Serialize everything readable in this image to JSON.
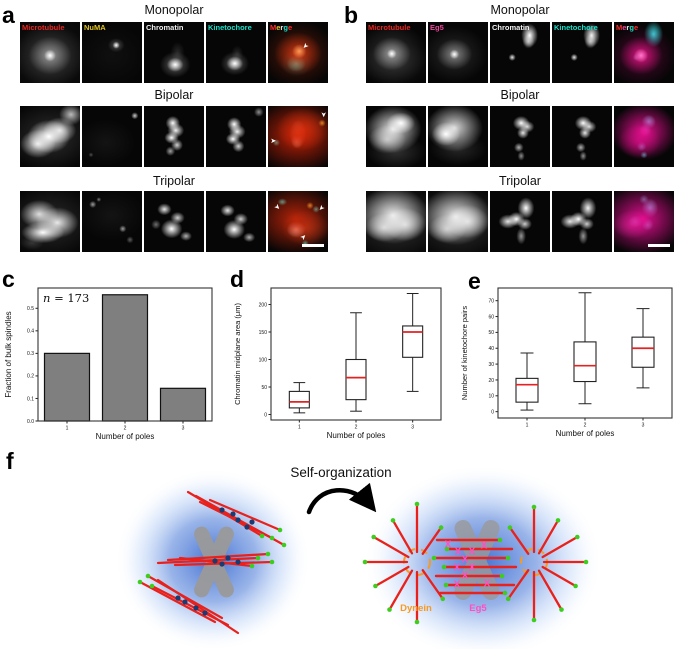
{
  "figure": {
    "panel_a": {
      "letter": "a",
      "row_titles": [
        "Monopolar",
        "Bipolar",
        "Tripolar"
      ],
      "channels": [
        {
          "label": "Microtubule",
          "color": "#e8241f"
        },
        {
          "label": "NuMA",
          "color": "#e3c51d"
        },
        {
          "label": "Chromatin",
          "color": "#f2f2f2"
        },
        {
          "label": "Kinetochore",
          "color": "#18e0c8"
        },
        {
          "label": "Merge",
          "color": "multi"
        }
      ],
      "merge_letters": [
        {
          "ch": "M",
          "color": "#ff2a2a"
        },
        {
          "ch": "e",
          "color": "#e3c51d"
        },
        {
          "ch": "r",
          "color": "#e8e8e8"
        },
        {
          "ch": "g",
          "color": "#18e0c8"
        },
        {
          "ch": "e",
          "color": "#ff2a2a"
        }
      ]
    },
    "panel_b": {
      "letter": "b",
      "row_titles": [
        "Monopolar",
        "Bipolar",
        "Tripolar"
      ],
      "channels": [
        {
          "label": "Microtubule",
          "color": "#e8241f"
        },
        {
          "label": "Eg5",
          "color": "#f0459c"
        },
        {
          "label": "Chromatin",
          "color": "#f2f2f2"
        },
        {
          "label": "Kinetochore",
          "color": "#18e0c8"
        },
        {
          "label": "Merge",
          "color": "multi"
        }
      ],
      "merge_letters": [
        {
          "ch": "M",
          "color": "#ff2a2a"
        },
        {
          "ch": "e",
          "color": "#f0459c"
        },
        {
          "ch": "r",
          "color": "#e8e8e8"
        },
        {
          "ch": "g",
          "color": "#18e0c8"
        },
        {
          "ch": "e",
          "color": "#ff2a2a"
        }
      ]
    },
    "panel_f": {
      "letter": "f",
      "arrow_label": "Self-organization",
      "legend": [
        {
          "label": "Dynein",
          "color": "#f59a23"
        },
        {
          "label": "Eg5",
          "color": "#ff4fc2"
        }
      ]
    }
  },
  "chart_data": [
    {
      "id": "c",
      "panel_letter": "c",
      "type": "bar",
      "title": "",
      "xlabel": "Number of poles",
      "ylabel": "Fraction of bulk spindles",
      "annotation": "n = 173",
      "categories": [
        "1",
        "2",
        "3"
      ],
      "values": [
        0.3,
        0.56,
        0.145
      ],
      "ylim": [
        0,
        0.59
      ],
      "yticks": [
        0.0,
        0.1,
        0.2,
        0.3,
        0.4,
        0.5
      ],
      "ytick_labels": [
        "0.0",
        "0.1",
        "0.2",
        "0.3",
        "0.4",
        "0.5"
      ],
      "bar_color": "#7f7f7f",
      "grid": false,
      "legend_position": "none"
    },
    {
      "id": "d",
      "panel_letter": "d",
      "type": "box",
      "title": "",
      "xlabel": "Number of poles",
      "ylabel": "Chromatin midplane area (μm)",
      "categories": [
        "1",
        "2",
        "3"
      ],
      "series": [
        {
          "category": "1",
          "whislo": 3,
          "q1": 12,
          "med": 23,
          "q3": 42,
          "whishi": 58
        },
        {
          "category": "2",
          "whislo": 6,
          "q1": 27,
          "med": 67,
          "q3": 100,
          "whishi": 185
        },
        {
          "category": "3",
          "whislo": 42,
          "q1": 104,
          "med": 150,
          "q3": 161,
          "whishi": 220
        }
      ],
      "ylim": [
        -10,
        230
      ],
      "yticks": [
        0,
        50,
        100,
        150,
        200
      ],
      "ytick_labels": [
        "0",
        "50",
        "100",
        "150",
        "200"
      ],
      "median_color": "#e32222",
      "grid": false,
      "legend_position": "none"
    },
    {
      "id": "e",
      "panel_letter": "e",
      "type": "box",
      "title": "",
      "xlabel": "Number of poles",
      "ylabel": "Number of kinetochore pairs",
      "categories": [
        "1",
        "2",
        "3"
      ],
      "series": [
        {
          "category": "1",
          "whislo": 1,
          "q1": 6,
          "med": 17,
          "q3": 21,
          "whishi": 37
        },
        {
          "category": "2",
          "whislo": 5,
          "q1": 19,
          "med": 29,
          "q3": 44,
          "whishi": 75
        },
        {
          "category": "3",
          "whislo": 15,
          "q1": 28,
          "med": 40,
          "q3": 47,
          "whishi": 65
        }
      ],
      "ylim": [
        -4,
        78
      ],
      "yticks": [
        0,
        10,
        20,
        30,
        40,
        50,
        60,
        70
      ],
      "ytick_labels": [
        "0",
        "10",
        "20",
        "30",
        "40",
        "50",
        "60",
        "70"
      ],
      "median_color": "#e32222",
      "grid": false,
      "legend_position": "none"
    }
  ]
}
